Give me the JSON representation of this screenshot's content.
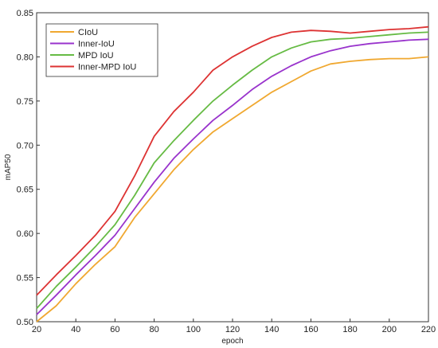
{
  "chart_data": {
    "type": "line",
    "title": "",
    "xlabel": "epoch",
    "ylabel": "mAP50",
    "xlim": [
      20,
      220
    ],
    "ylim": [
      0.5,
      0.85
    ],
    "xticks": [
      20,
      40,
      60,
      80,
      100,
      120,
      140,
      160,
      180,
      200,
      220
    ],
    "yticks": [
      0.5,
      0.55,
      0.6,
      0.65,
      0.7,
      0.75,
      0.8,
      0.85
    ],
    "grid": false,
    "legend_position": "top-left",
    "x": [
      20,
      30,
      40,
      50,
      60,
      70,
      80,
      90,
      100,
      110,
      120,
      130,
      140,
      150,
      160,
      170,
      180,
      190,
      200,
      210,
      220
    ],
    "series": [
      {
        "name": "CIoU",
        "color": "#f0a830",
        "values": [
          0.5,
          0.518,
          0.543,
          0.565,
          0.585,
          0.618,
          0.645,
          0.672,
          0.695,
          0.715,
          0.73,
          0.745,
          0.76,
          0.772,
          0.784,
          0.792,
          0.795,
          0.797,
          0.798,
          0.798,
          0.8
        ]
      },
      {
        "name": "Inner-IoU",
        "color": "#9933cc",
        "values": [
          0.508,
          0.53,
          0.553,
          0.575,
          0.598,
          0.628,
          0.658,
          0.685,
          0.707,
          0.728,
          0.745,
          0.763,
          0.778,
          0.79,
          0.8,
          0.807,
          0.812,
          0.815,
          0.817,
          0.819,
          0.82
        ]
      },
      {
        "name": "MPD IoU",
        "color": "#66bb44",
        "values": [
          0.515,
          0.54,
          0.562,
          0.585,
          0.61,
          0.643,
          0.68,
          0.705,
          0.728,
          0.75,
          0.768,
          0.785,
          0.8,
          0.81,
          0.817,
          0.82,
          0.821,
          0.823,
          0.825,
          0.827,
          0.828
        ]
      },
      {
        "name": "Inner-MPD IoU",
        "color": "#dd3333",
        "values": [
          0.53,
          0.553,
          0.575,
          0.598,
          0.625,
          0.665,
          0.71,
          0.738,
          0.76,
          0.785,
          0.8,
          0.812,
          0.822,
          0.828,
          0.83,
          0.829,
          0.827,
          0.829,
          0.831,
          0.832,
          0.834
        ]
      }
    ]
  }
}
